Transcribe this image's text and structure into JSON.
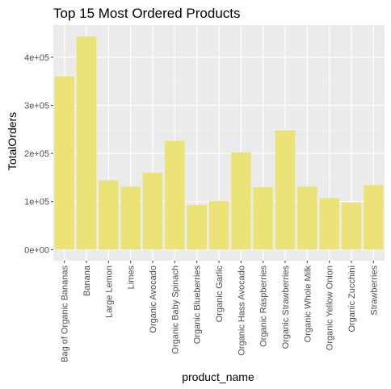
{
  "chart_data": {
    "type": "bar",
    "title": "Top 15 Most Ordered Products",
    "xlabel": "product_name",
    "ylabel": "TotalOrders",
    "categories": [
      "Bag of Organic Bananas",
      "Banana",
      "Large Lemon",
      "Limes",
      "Organic Avocado",
      "Organic Baby Spinach",
      "Organic Blueberries",
      "Organic Garlic",
      "Organic Hass Avocado",
      "Organic Raspberries",
      "Organic Strawberries",
      "Organic Whole Milk",
      "Organic Yellow Onion",
      "Organic Zucchini",
      "Strawberries"
    ],
    "values": [
      360000,
      443000,
      144000,
      131000,
      160000,
      226000,
      93000,
      101000,
      202000,
      130000,
      248000,
      131000,
      107000,
      98000,
      134000
    ],
    "ylim": [
      -23000,
      467000
    ],
    "yticks": [
      0,
      100000,
      200000,
      300000,
      400000
    ],
    "ytick_labels": [
      "0e+00",
      "1e+05",
      "2e+05",
      "3e+05",
      "4e+05"
    ],
    "grid": true,
    "colors": {
      "bar": "#ebe378",
      "panel": "#ebebeb",
      "grid_major": "#ffffff",
      "grid_minor": "#f4f4f4"
    }
  }
}
